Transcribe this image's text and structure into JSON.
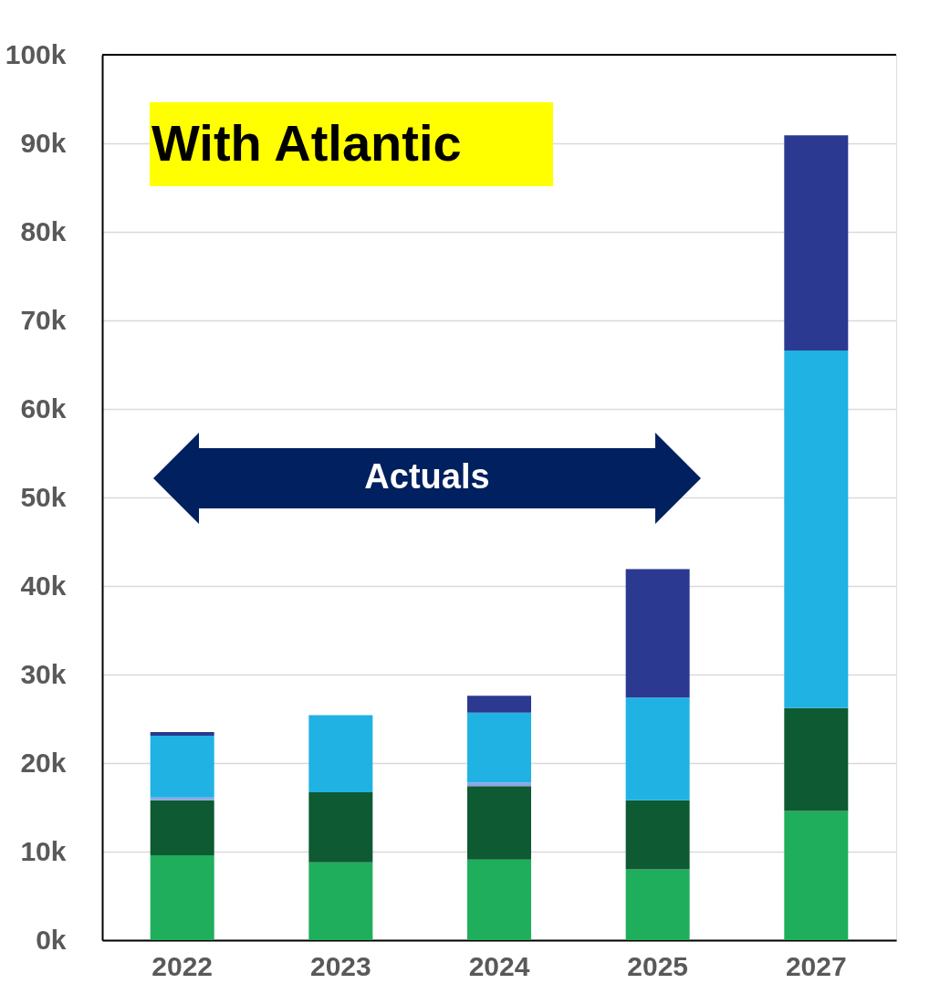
{
  "chart_data": {
    "type": "bar",
    "stacked": true,
    "categories": [
      "2022",
      "2023",
      "2024",
      "2025",
      "2027"
    ],
    "series": [
      {
        "color": "#1fae5b",
        "values": [
          9600,
          8800,
          9100,
          8000,
          14600
        ]
      },
      {
        "color": "#0e5a32",
        "values": [
          6200,
          7900,
          8300,
          7800,
          11600
        ]
      },
      {
        "color": "#8ea5e8",
        "values": [
          300,
          null,
          400,
          null,
          null
        ]
      },
      {
        "color": "#20b2e3",
        "values": [
          7000,
          8700,
          7900,
          11600,
          40400
        ]
      },
      {
        "color": "#2b3990",
        "values": [
          400,
          null,
          1900,
          14500,
          24300
        ]
      }
    ],
    "ylim": [
      0,
      100000
    ],
    "yticks": [
      {
        "value": 0,
        "label": "0k"
      },
      {
        "value": 10000,
        "label": "10k"
      },
      {
        "value": 20000,
        "label": "20k"
      },
      {
        "value": 30000,
        "label": "30k"
      },
      {
        "value": 40000,
        "label": "40k"
      },
      {
        "value": 50000,
        "label": "50k"
      },
      {
        "value": 60000,
        "label": "60k"
      },
      {
        "value": 70000,
        "label": "70k"
      },
      {
        "value": 80000,
        "label": "80k"
      },
      {
        "value": 90000,
        "label": "90k"
      },
      {
        "value": 100000,
        "label": "100k"
      }
    ],
    "grid": "y",
    "annotations": [
      "With Atlantic",
      "Actuals"
    ]
  }
}
